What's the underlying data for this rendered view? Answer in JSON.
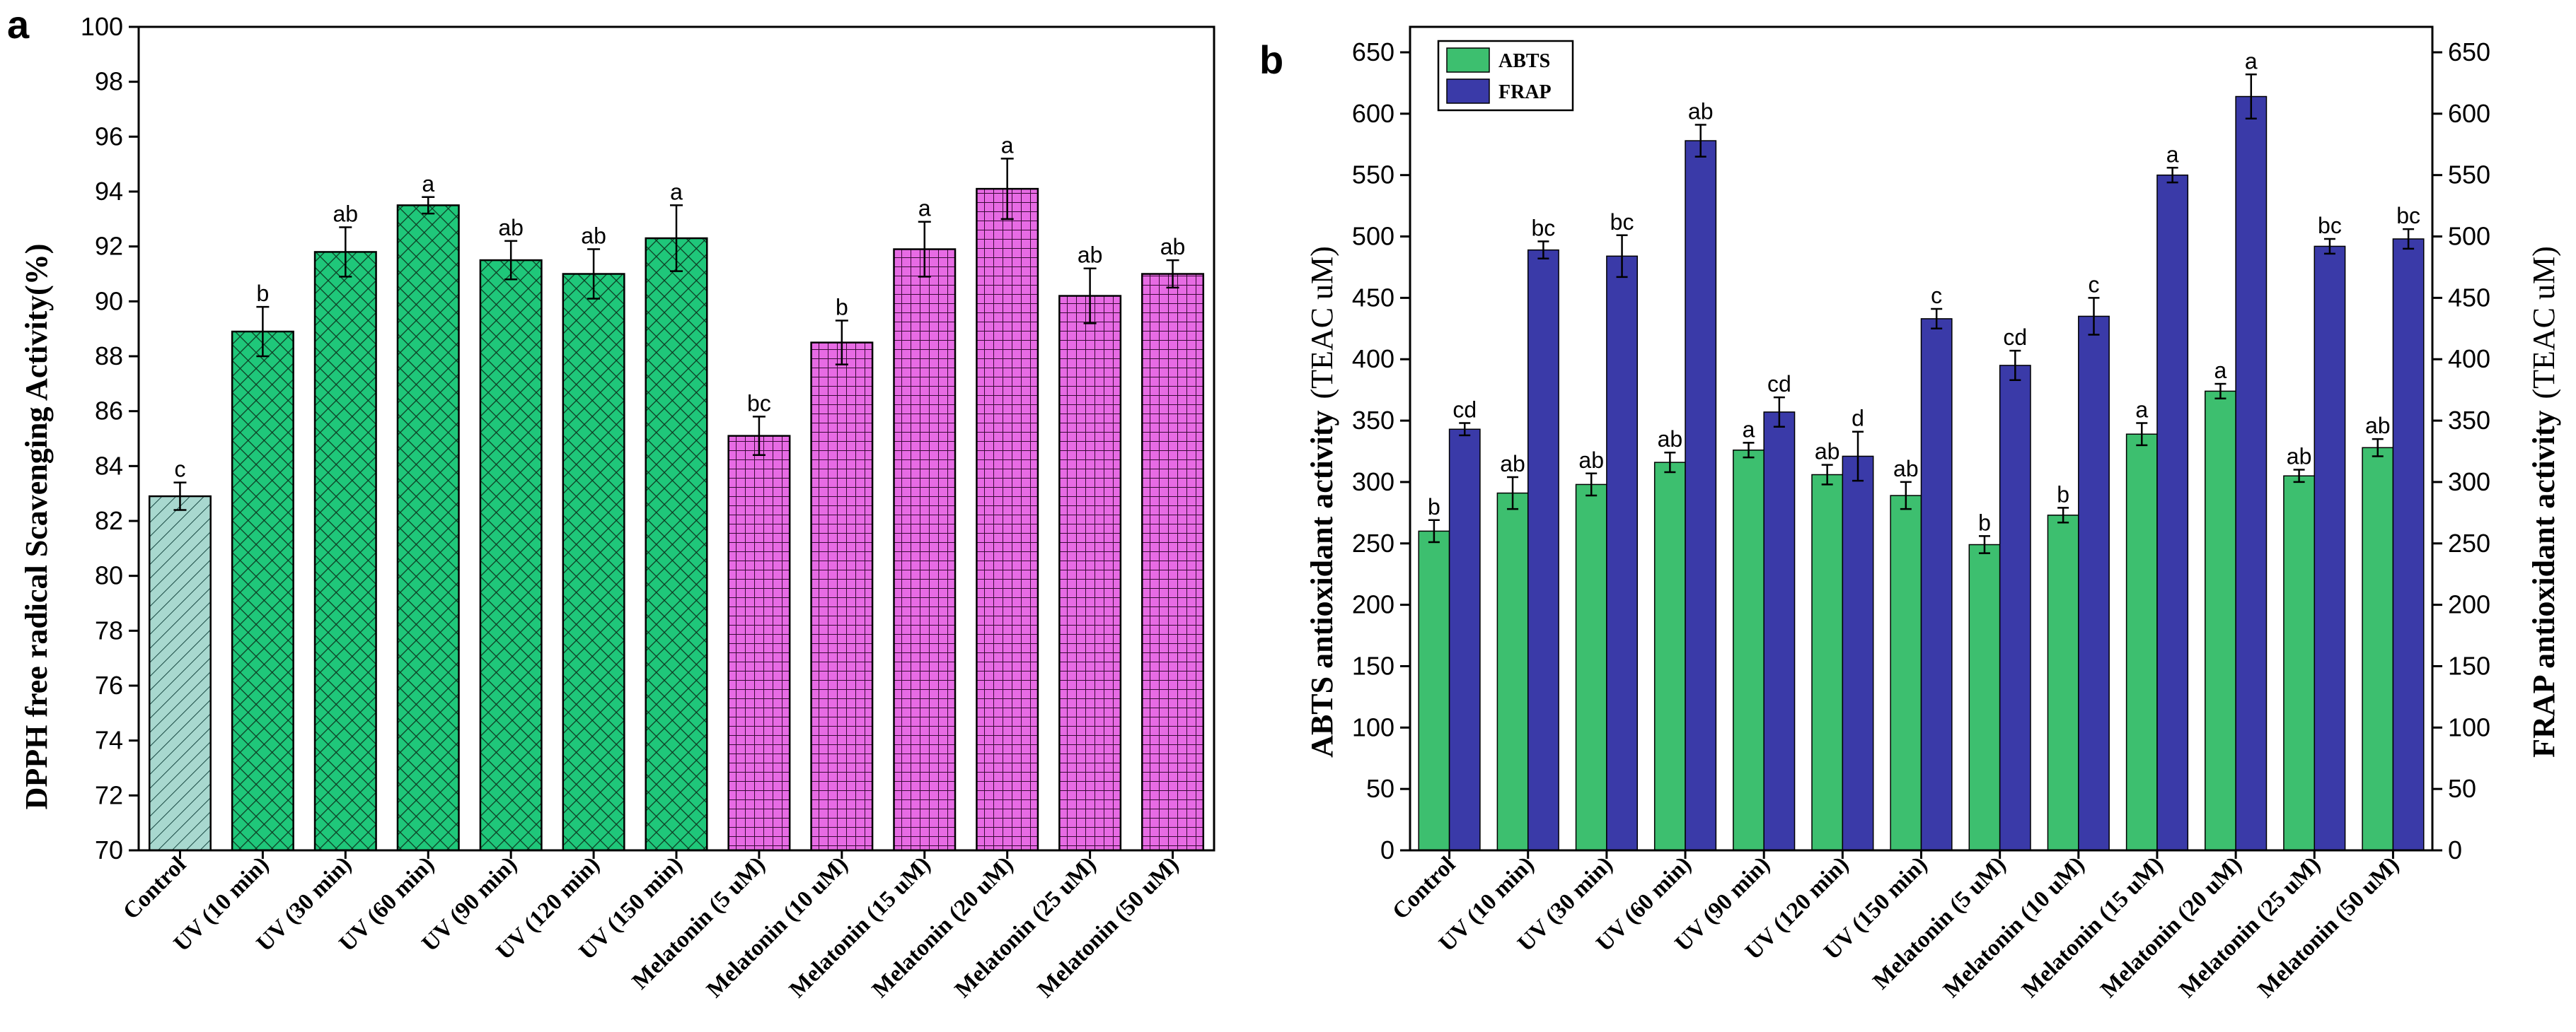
{
  "panel_a_letter": "a",
  "panel_b_letter": "b",
  "colors": {
    "control_fill": "#a8d8cf",
    "uv_fill": "#1fc77a",
    "melatonin_fill": "#e76be4",
    "abts": "#3dbf6f",
    "frap": "#3a3aa8"
  },
  "chart_data": [
    {
      "type": "bar",
      "panel": "a",
      "title": "",
      "xlabel": "",
      "ylabel": "DPPH free radical Scavenging Activity(%)",
      "ylim": [
        70,
        100
      ],
      "yticks": [
        70,
        72,
        74,
        76,
        78,
        80,
        82,
        84,
        86,
        88,
        90,
        92,
        94,
        96,
        98,
        100
      ],
      "categories": [
        "Control",
        "UV (10 min)",
        "UV (30 min)",
        "UV (60 min)",
        "UV (90 min)",
        "UV (120 min)",
        "UV (150 min)",
        "Melatonin (5 uM)",
        "Melatonin (10 uM)",
        "Melatonin (15 uM)",
        "Melatonin (20 uM)",
        "Melatonin (25 uM)",
        "Melatonin (50 uM)"
      ],
      "values": [
        82.9,
        88.9,
        91.8,
        93.5,
        91.5,
        91.0,
        92.3,
        85.1,
        88.5,
        91.9,
        94.1,
        90.2,
        91.0
      ],
      "errors": [
        0.5,
        0.9,
        0.9,
        0.3,
        0.7,
        0.9,
        1.2,
        0.7,
        0.8,
        1.0,
        1.1,
        1.0,
        0.5
      ],
      "significance": [
        "c",
        "b",
        "ab",
        "a",
        "ab",
        "ab",
        "a",
        "bc",
        "b",
        "a",
        "a",
        "ab",
        "ab"
      ],
      "groups": [
        "control",
        "uv",
        "uv",
        "uv",
        "uv",
        "uv",
        "uv",
        "melatonin",
        "melatonin",
        "melatonin",
        "melatonin",
        "melatonin",
        "melatonin"
      ]
    },
    {
      "type": "bar",
      "panel": "b",
      "title": "",
      "xlabel": "",
      "ylabel_left_bold": "ABTS antioxidant activity",
      "ylabel_left_unit": "(TEAC uM)",
      "ylabel_right_bold": "FRAP antioxidant activity",
      "ylabel_right_unit": "(TEAC uM)",
      "ylim": [
        0,
        650
      ],
      "yticks": [
        0,
        50,
        100,
        150,
        200,
        250,
        300,
        350,
        400,
        450,
        500,
        550,
        600,
        650
      ],
      "legend_position": "top-left",
      "categories": [
        "Control",
        "UV (10 min)",
        "UV (30 min)",
        "UV (60 min)",
        "UV (90 min)",
        "UV (120 min)",
        "UV (150 min)",
        "Melatonin (5 uM)",
        "Melatonin (10 uM)",
        "Melatonin (15 uM)",
        "Melatonin (20 uM)",
        "Melatonin (25 uM)",
        "Melatonin (50 uM)"
      ],
      "series": [
        {
          "name": "ABTS",
          "values": [
            260,
            291,
            298,
            316,
            326,
            306,
            289,
            249,
            273,
            339,
            374,
            305,
            328
          ],
          "errors": [
            9,
            13,
            9,
            8,
            6,
            8,
            11,
            7,
            6,
            9,
            6,
            5,
            7
          ],
          "significance": [
            "b",
            "ab",
            "ab",
            "ab",
            "a",
            "ab",
            "ab",
            "b",
            "b",
            "a",
            "a",
            "ab",
            "ab"
          ]
        },
        {
          "name": "FRAP",
          "values": [
            343,
            489,
            484,
            578,
            357,
            321,
            433,
            395,
            435,
            550,
            614,
            492,
            498
          ],
          "errors": [
            5,
            7,
            17,
            13,
            12,
            20,
            8,
            12,
            15,
            6,
            18,
            6,
            8
          ],
          "significance": [
            "cd",
            "bc",
            "bc",
            "ab",
            "cd",
            "d",
            "c",
            "cd",
            "c",
            "a",
            "a",
            "bc",
            "bc"
          ]
        }
      ]
    }
  ]
}
